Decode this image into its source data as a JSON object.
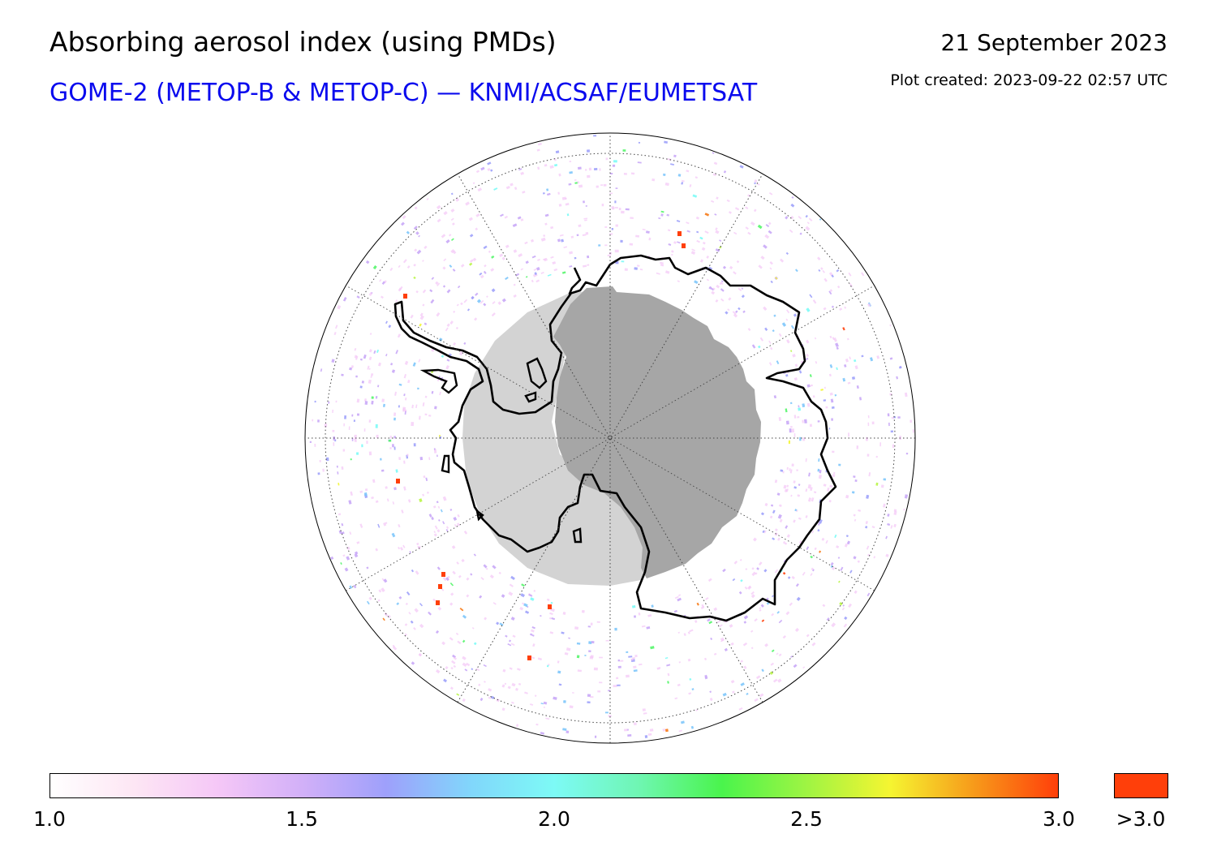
{
  "header": {
    "title": "Absorbing aerosol index (using PMDs)",
    "subtitle": "GOME-2 (METOP-B & METOP-C) — KNMI/ACSAF/EUMETSAT",
    "date": "21 September 2023",
    "created": "Plot created: 2023-09-22 02:57 UTC"
  },
  "colors": {
    "subtitle": "#0a0aee",
    "polar_night_dark": "#a6a6a6",
    "polar_night_light": "#d3d3d3",
    "coastline": "#000000",
    "overflow": "#ff3f0a"
  },
  "map": {
    "projection": "south polar stereographic",
    "graticule": "dotted meridians every 30°, dotted latitude circle",
    "data_pixel_palette": [
      "#f3c6f6",
      "#c9a8f7",
      "#9ea2fb",
      "#7ec6fb",
      "#7cfbf6",
      "#55f56c",
      "#b9f547",
      "#f3f533",
      "#f77a16",
      "#ff3f0a"
    ]
  },
  "colorbar": {
    "min": 1.0,
    "max": 3.0,
    "ticks": [
      "1.0",
      "1.5",
      "2.0",
      "2.5",
      "3.0"
    ],
    "overflow_label": ">3.0",
    "stops": [
      "#ffffff",
      "#fde6f4",
      "#f5c7f7",
      "#d2b0f8",
      "#9ea0fb",
      "#81d6fb",
      "#7dfaf6",
      "#6ff6b3",
      "#4af44c",
      "#9ef443",
      "#f5f531",
      "#f79a1a",
      "#ff3f0a"
    ]
  }
}
